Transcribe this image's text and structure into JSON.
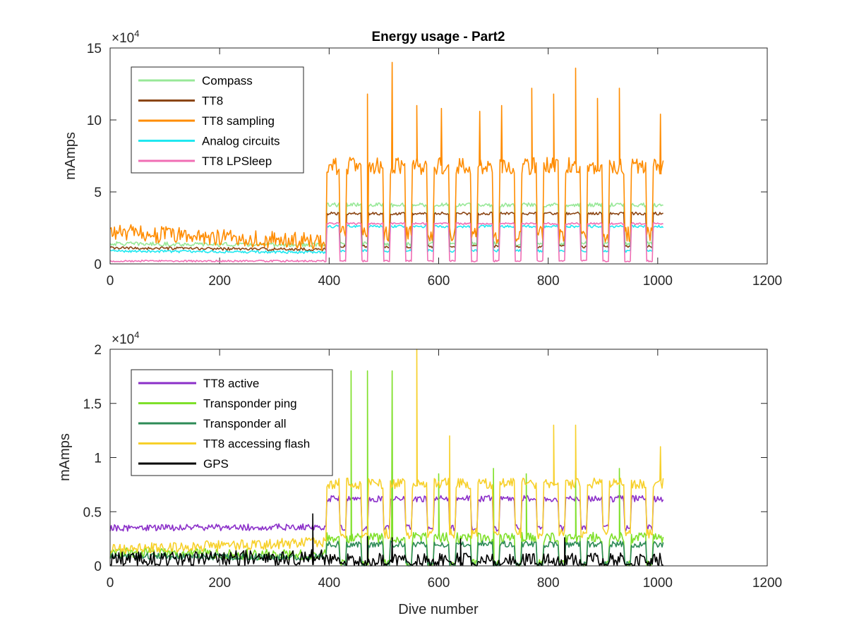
{
  "chart_data": [
    {
      "type": "line",
      "title": "Energy usage - Part2",
      "xlabel": "",
      "ylabel": "mAmps",
      "xlim": [
        0,
        1200
      ],
      "ylim": [
        0,
        150000
      ],
      "y_exponent_label": {
        "base": "×10",
        "power": "4"
      },
      "xticks": [
        0,
        200,
        400,
        600,
        800,
        1000,
        1200
      ],
      "xtick_labels": [
        "0",
        "200",
        "400",
        "600",
        "800",
        "1000",
        "1200"
      ],
      "yticks": [
        0,
        50000,
        100000,
        150000
      ],
      "ytick_labels": [
        "0",
        "5",
        "10",
        "15"
      ],
      "legend_position": "top-left",
      "series": [
        {
          "name": "Compass",
          "color": "#98e898",
          "profile": {
            "pre_start": 14000,
            "pre_end": 13000,
            "post_base": 41000,
            "post_dip": 14000,
            "cycle": 40,
            "noise": 1400,
            "spikes": []
          }
        },
        {
          "name": "TT8",
          "color": "#8b4513",
          "profile": {
            "pre_start": 11000,
            "pre_end": 10000,
            "post_base": 35000,
            "post_dip": 12000,
            "cycle": 40,
            "noise": 1000,
            "spikes": []
          }
        },
        {
          "name": "TT8 sampling",
          "color": "#ff8c00",
          "profile": {
            "pre_start": 22000,
            "pre_end": 15000,
            "post_base": 68000,
            "post_dip": 20000,
            "cycle": 40,
            "noise": 6000,
            "spikes": [
              [
                470,
                118000
              ],
              [
                515,
                140000
              ],
              [
                560,
                110000
              ],
              [
                605,
                108000
              ],
              [
                675,
                106000
              ],
              [
                715,
                110000
              ],
              [
                770,
                122000
              ],
              [
                810,
                118000
              ],
              [
                850,
                136000
              ],
              [
                890,
                115000
              ],
              [
                930,
                122000
              ],
              [
                1005,
                104000
              ]
            ]
          }
        },
        {
          "name": "Analog circuits",
          "color": "#20e8f0",
          "profile": {
            "pre_start": 9000,
            "pre_end": 8000,
            "post_base": 26000,
            "post_dip": 9000,
            "cycle": 40,
            "noise": 900,
            "spikes": []
          }
        },
        {
          "name": "TT8 LPSleep",
          "color": "#f06eb4",
          "profile": {
            "pre_start": 2000,
            "pre_end": 2000,
            "post_base": 28000,
            "post_dip": 2000,
            "cycle": 40,
            "noise": 600,
            "spikes": []
          }
        }
      ]
    },
    {
      "type": "line",
      "title": "",
      "xlabel": "Dive number",
      "ylabel": "mAmps",
      "xlim": [
        0,
        1200
      ],
      "ylim": [
        0,
        20000
      ],
      "y_exponent_label": {
        "base": "×10",
        "power": "4"
      },
      "xticks": [
        0,
        200,
        400,
        600,
        800,
        1000,
        1200
      ],
      "xtick_labels": [
        "0",
        "200",
        "400",
        "600",
        "800",
        "1000",
        "1200"
      ],
      "yticks": [
        0,
        5000,
        10000,
        15000,
        20000
      ],
      "ytick_labels": [
        "0",
        "0.5",
        "1",
        "1.5",
        "2"
      ],
      "legend_position": "top-left",
      "series": [
        {
          "name": "TT8 active",
          "color": "#8b2fc9",
          "profile": {
            "pre_start": 3500,
            "pre_end": 3600,
            "post_base": 6200,
            "post_dip": 3500,
            "cycle": 40,
            "noise": 300,
            "spikes": []
          }
        },
        {
          "name": "Transponder ping",
          "color": "#7fe02a",
          "profile": {
            "pre_start": 1200,
            "pre_end": 1000,
            "post_base": 2600,
            "post_dip": 100,
            "cycle": 40,
            "noise": 500,
            "spikes": [
              [
                440,
                18000
              ],
              [
                470,
                18000
              ],
              [
                515,
                18000
              ],
              [
                600,
                8500
              ],
              [
                700,
                9000
              ],
              [
                760,
                8500
              ],
              [
                850,
                8800
              ],
              [
                930,
                9000
              ]
            ]
          }
        },
        {
          "name": "Transponder all",
          "color": "#2e8b57",
          "profile": {
            "pre_start": 900,
            "pre_end": 800,
            "post_base": 2000,
            "post_dip": 100,
            "cycle": 40,
            "noise": 300,
            "spikes": []
          }
        },
        {
          "name": "TT8 accessing flash",
          "color": "#f7d02a",
          "profile": {
            "pre_start": 1500,
            "pre_end": 2200,
            "post_base": 7600,
            "post_dip": 3000,
            "cycle": 40,
            "noise": 500,
            "spikes": [
              [
                560,
                20000
              ],
              [
                620,
                12000
              ],
              [
                810,
                13000
              ],
              [
                850,
                13000
              ],
              [
                1005,
                11000
              ]
            ]
          }
        },
        {
          "name": "GPS",
          "color": "#000000",
          "profile": {
            "pre_start": 600,
            "pre_end": 800,
            "post_base": 500,
            "post_dip": 0,
            "cycle": 40,
            "noise": 700,
            "spikes": [
              [
                370,
                4800
              ],
              [
                470,
                2700
              ],
              [
                515,
                2600
              ],
              [
                640,
                2500
              ],
              [
                830,
                2600
              ]
            ]
          }
        }
      ]
    }
  ]
}
